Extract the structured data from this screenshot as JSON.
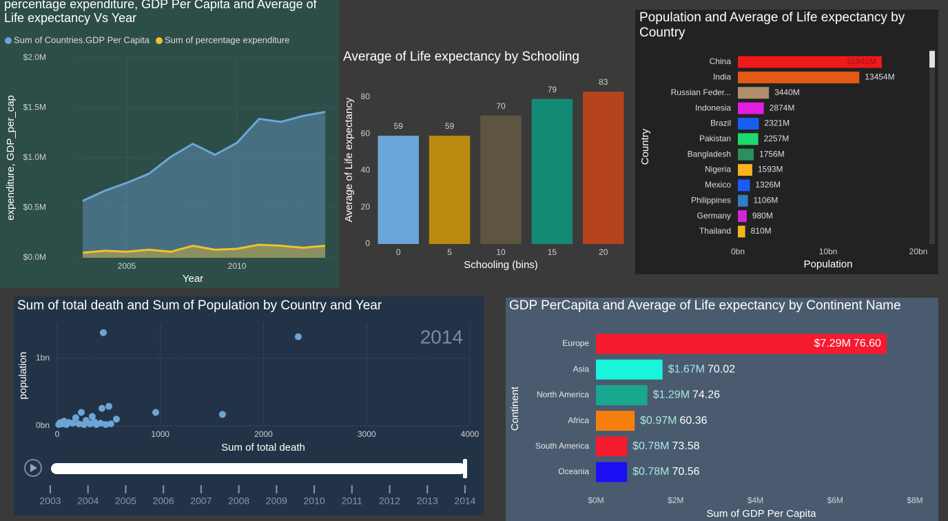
{
  "chart_data": [
    {
      "type": "area",
      "title": "percentage expenditure, GDP Per Capita and Average of Life expectancy Vs Year",
      "xlabel": "Year",
      "ylabel": "expenditure, GDP_per_cap",
      "x": [
        2003,
        2004,
        2005,
        2006,
        2007,
        2008,
        2009,
        2010,
        2011,
        2012,
        2013,
        2014
      ],
      "xlim": [
        2002.625,
        2014.5
      ],
      "xticks": [
        2005,
        2010
      ],
      "ylim": [
        0,
        2
      ],
      "yticks": [
        {
          "value": 0,
          "label": "$0.0M"
        },
        {
          "value": 0.5,
          "label": "$0.5M"
        },
        {
          "value": 1,
          "label": "$1.0M"
        },
        {
          "value": 1.5,
          "label": "$1.5M"
        },
        {
          "value": 2,
          "label": "$2.0M"
        }
      ],
      "grid": true,
      "series": [
        {
          "name": "Sum of Countries.GDP Per Capita",
          "color": "#6ca6d8",
          "values": [
            0.57,
            0.67,
            0.75,
            0.84,
            1.01,
            1.14,
            1.03,
            1.15,
            1.39,
            1.36,
            1.42,
            1.46
          ]
        },
        {
          "name": "Sum of percentage expenditure",
          "color": "#f2c12e",
          "values": [
            0.05,
            0.07,
            0.06,
            0.08,
            0.06,
            0.12,
            0.08,
            0.09,
            0.13,
            0.12,
            0.1,
            0.12
          ]
        }
      ]
    },
    {
      "type": "bar",
      "title": "Average of Life expectancy by Schooling",
      "xlabel": "Schooling (bins)",
      "ylabel": "Average of Life expectancy",
      "categories": [
        0,
        5,
        10,
        15,
        20
      ],
      "values": [
        59,
        59,
        70,
        79,
        83
      ],
      "colors": [
        "#6ca6d8",
        "#ba8a0e",
        "#5e5540",
        "#138a73",
        "#b5431e"
      ],
      "ylim": [
        0,
        86
      ],
      "yticks": [
        0,
        20,
        40,
        60,
        80
      ],
      "grid": false
    },
    {
      "type": "barh",
      "title": "Population and Average of Life expectancy by Country",
      "xlabel": "Population",
      "ylabel": "Country",
      "categories": [
        "China",
        "India",
        "Russian Feder...",
        "Indonesia",
        "Brazil",
        "Pakistan",
        "Bangladesh",
        "Nigeria",
        "Mexico",
        "Philippines",
        "Germany",
        "Thailand"
      ],
      "values": [
        15945000000,
        13454000000,
        3440000000,
        2874000000,
        2321000000,
        2257000000,
        1756000000,
        1593000000,
        1326000000,
        1106000000,
        980000000,
        810000000
      ],
      "value_labels": [
        "15945M",
        "13454M",
        "3440M",
        "2874M",
        "2321M",
        "2257M",
        "1756M",
        "1593M",
        "1326M",
        "1106M",
        "980M",
        "810M"
      ],
      "colors": [
        "#f0191b",
        "#e35a14",
        "#af8f6e",
        "#e41be0",
        "#1a5cf5",
        "#1adb6e",
        "#2b8f5e",
        "#f7b41c",
        "#1a5cf5",
        "#2e7fc4",
        "#d624d6",
        "#f2b41c"
      ],
      "xlim": [
        0,
        20000000000
      ],
      "xticks": [
        {
          "value": 0,
          "label": "0bn"
        },
        {
          "value": 10000000000,
          "label": "10bn"
        },
        {
          "value": 20000000000,
          "label": "20bn"
        }
      ]
    },
    {
      "type": "scatter",
      "title": "Sum of total death and Sum of Population by Country and Year",
      "xlabel": "Sum of total death",
      "ylabel": "population",
      "annotation": 2014,
      "color": "#6ca6d8",
      "x": [
        447,
        2337,
        955,
        1602,
        501,
        434,
        234,
        340,
        180,
        574,
        67,
        113,
        280,
        15,
        45,
        150,
        210,
        260,
        320,
        380,
        420,
        470,
        520,
        30,
        90,
        360
      ],
      "values": [
        1380000000,
        1320000000,
        200000000,
        170000000,
        290000000,
        260000000,
        200000000,
        140000000,
        120000000,
        100000000,
        70000000,
        50000000,
        80000000,
        20000000,
        30000000,
        40000000,
        30000000,
        20000000,
        30000000,
        20000000,
        40000000,
        20000000,
        30000000,
        50000000,
        20000000,
        60000000
      ],
      "xlim": [
        0,
        4000
      ],
      "xticks": [
        0,
        1000,
        2000,
        3000,
        4000
      ],
      "ylim": [
        0,
        1500000000
      ],
      "yticks": [
        {
          "value": 0,
          "label": "0bn"
        },
        {
          "value": 1000000000,
          "label": "1bn"
        }
      ],
      "grid": true,
      "play_axis": [
        2003,
        2004,
        2005,
        2006,
        2007,
        2008,
        2009,
        2010,
        2011,
        2012,
        2013,
        2014
      ]
    },
    {
      "type": "barh",
      "title": "GDP PerCapita and Average of Life expectancy by Continent Name",
      "xlabel": "Sum of GDP Per Capita",
      "ylabel": "Continent",
      "categories": [
        "Europe",
        "Asia",
        "North America",
        "Africa",
        "South America",
        "Oceania"
      ],
      "values": [
        7.29,
        1.67,
        1.29,
        0.97,
        0.78,
        0.78
      ],
      "value_labels": [
        "$7.29M",
        "$1.67M",
        "$1.29M",
        "$0.97M",
        "$0.78M",
        "$0.78M"
      ],
      "secondary_values": [
        76.6,
        70.02,
        74.26,
        60.36,
        73.58,
        70.56
      ],
      "secondary_value_labels": [
        "76.60",
        "70.02",
        "74.26",
        "60.36",
        "73.58",
        "70.56"
      ],
      "colors": [
        "#f51a2e",
        "#18f5db",
        "#18a88f",
        "#f5800f",
        "#f51a2e",
        "#1a0ff5"
      ],
      "xlim": [
        0,
        8
      ],
      "xticks": [
        {
          "value": 0,
          "label": "$0M"
        },
        {
          "value": 2,
          "label": "$2M"
        },
        {
          "value": 4,
          "label": "$4M"
        },
        {
          "value": 6,
          "label": "$6M"
        },
        {
          "value": 8,
          "label": "$8M"
        }
      ]
    }
  ]
}
